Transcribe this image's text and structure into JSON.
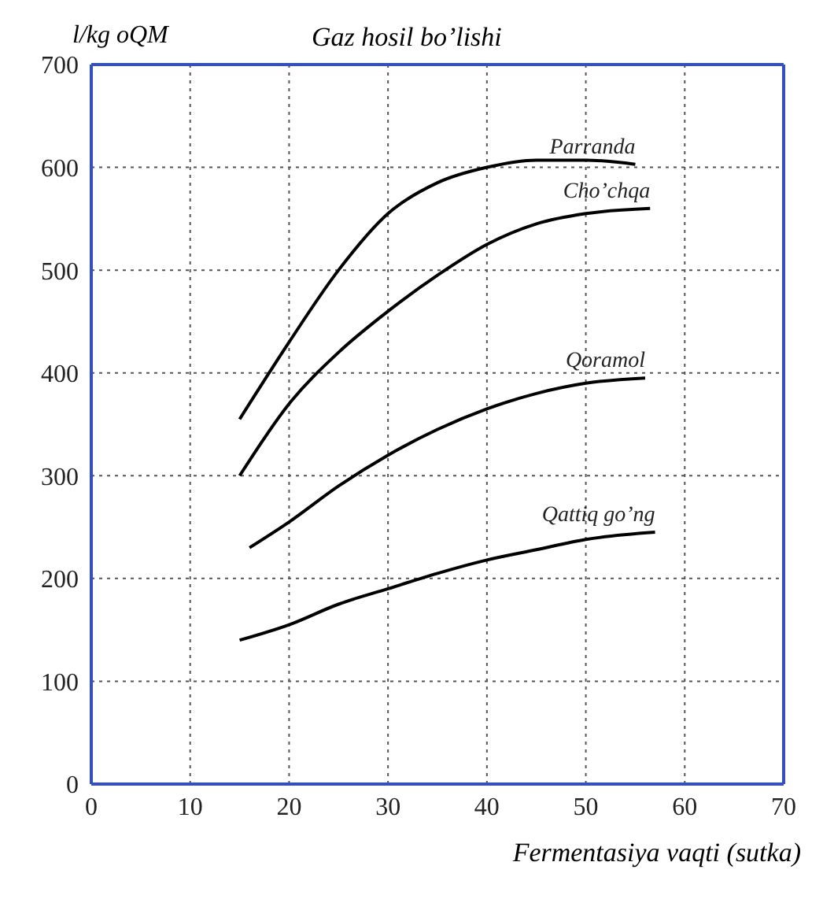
{
  "chart_data": {
    "type": "line",
    "title": "Gaz hosil bo’lishi",
    "ylabel": "l/kg oQM",
    "xlabel": "Fermentasiya vaqti (sutka)",
    "xlim": [
      0,
      70
    ],
    "xticks": [
      0,
      10,
      20,
      30,
      40,
      50,
      60,
      70
    ],
    "ylim": [
      0,
      700
    ],
    "yticks": [
      0,
      100,
      200,
      300,
      400,
      500,
      600,
      700
    ],
    "grid": true,
    "marker": "none",
    "line_style": "solid",
    "series": [
      {
        "name": "Parranda",
        "color": "#000000",
        "x": [
          15,
          20,
          25,
          30,
          35,
          40,
          45,
          50,
          55
        ],
        "values": [
          355,
          430,
          500,
          555,
          585,
          600,
          607,
          607,
          603
        ]
      },
      {
        "name": "Cho’chqa",
        "color": "#000000",
        "x": [
          15,
          20,
          25,
          30,
          35,
          40,
          45,
          50,
          56.5
        ],
        "values": [
          300,
          370,
          420,
          460,
          495,
          525,
          545,
          555,
          560
        ]
      },
      {
        "name": "Qoramol",
        "color": "#000000",
        "x": [
          16,
          20,
          25,
          30,
          35,
          40,
          45,
          50,
          56
        ],
        "values": [
          230,
          255,
          290,
          320,
          345,
          365,
          380,
          390,
          395
        ]
      },
      {
        "name": "Qattiq go’ng",
        "color": "#000000",
        "x": [
          15,
          20,
          25,
          30,
          35,
          40,
          45,
          50,
          57
        ],
        "values": [
          140,
          155,
          175,
          190,
          205,
          218,
          228,
          238,
          245
        ]
      }
    ]
  }
}
